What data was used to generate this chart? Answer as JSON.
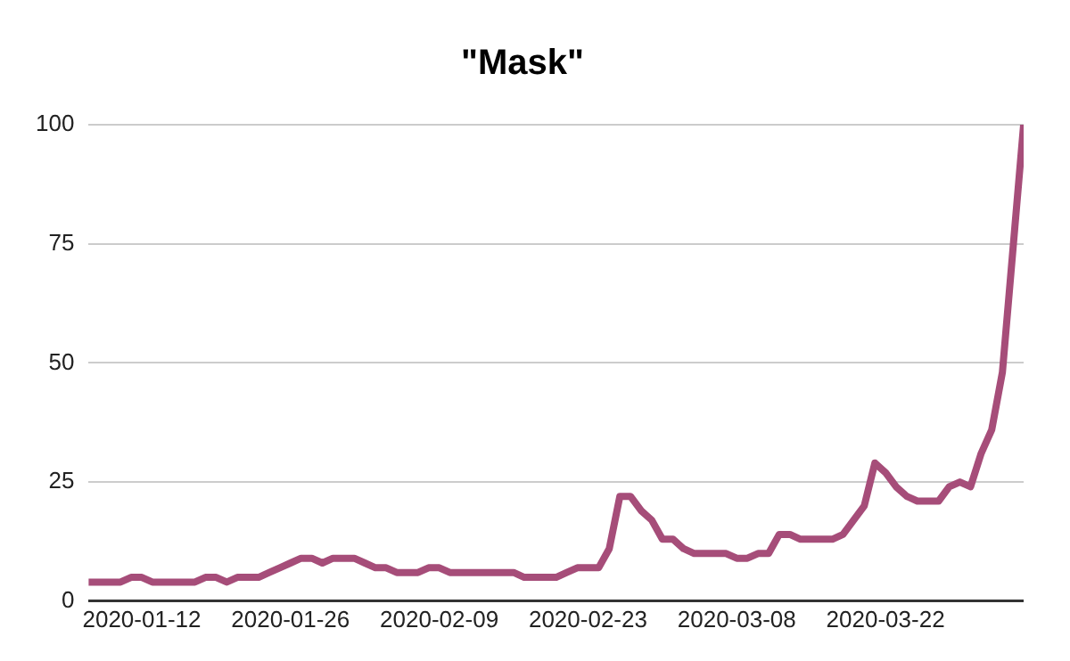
{
  "chart_data": {
    "type": "line",
    "title": "\"Mask\"",
    "x": [
      "2020-01-07",
      "2020-01-08",
      "2020-01-09",
      "2020-01-10",
      "2020-01-11",
      "2020-01-12",
      "2020-01-13",
      "2020-01-14",
      "2020-01-15",
      "2020-01-16",
      "2020-01-17",
      "2020-01-18",
      "2020-01-19",
      "2020-01-20",
      "2020-01-21",
      "2020-01-22",
      "2020-01-23",
      "2020-01-24",
      "2020-01-25",
      "2020-01-26",
      "2020-01-27",
      "2020-01-28",
      "2020-01-29",
      "2020-01-30",
      "2020-01-31",
      "2020-02-01",
      "2020-02-02",
      "2020-02-03",
      "2020-02-04",
      "2020-02-05",
      "2020-02-06",
      "2020-02-07",
      "2020-02-08",
      "2020-02-09",
      "2020-02-10",
      "2020-02-11",
      "2020-02-12",
      "2020-02-13",
      "2020-02-14",
      "2020-02-15",
      "2020-02-16",
      "2020-02-17",
      "2020-02-18",
      "2020-02-19",
      "2020-02-20",
      "2020-02-21",
      "2020-02-22",
      "2020-02-23",
      "2020-02-24",
      "2020-02-25",
      "2020-02-26",
      "2020-02-27",
      "2020-02-28",
      "2020-02-29",
      "2020-03-01",
      "2020-03-02",
      "2020-03-03",
      "2020-03-04",
      "2020-03-05",
      "2020-03-06",
      "2020-03-07",
      "2020-03-08",
      "2020-03-09",
      "2020-03-10",
      "2020-03-11",
      "2020-03-12",
      "2020-03-13",
      "2020-03-14",
      "2020-03-15",
      "2020-03-16",
      "2020-03-17",
      "2020-03-18",
      "2020-03-19",
      "2020-03-20",
      "2020-03-21",
      "2020-03-22",
      "2020-03-23",
      "2020-03-24",
      "2020-03-25",
      "2020-03-26",
      "2020-03-27",
      "2020-03-28",
      "2020-03-29",
      "2020-03-30",
      "2020-03-31",
      "2020-04-01",
      "2020-04-02",
      "2020-04-03",
      "2020-04-04"
    ],
    "series": [
      {
        "color": "#a64d79",
        "values": [
          4,
          4,
          4,
          4,
          5,
          5,
          4,
          4,
          4,
          4,
          4,
          5,
          5,
          4,
          5,
          5,
          5,
          6,
          7,
          8,
          9,
          9,
          8,
          9,
          9,
          9,
          8,
          7,
          7,
          6,
          6,
          6,
          7,
          7,
          6,
          6,
          6,
          6,
          6,
          6,
          6,
          5,
          5,
          5,
          5,
          6,
          7,
          7,
          7,
          11,
          22,
          22,
          19,
          17,
          13,
          13,
          11,
          10,
          10,
          10,
          10,
          9,
          9,
          10,
          10,
          14,
          14,
          13,
          13,
          13,
          13,
          14,
          17,
          20,
          29,
          27,
          24,
          22,
          21,
          21,
          21,
          24,
          25,
          24,
          31,
          36,
          48,
          74,
          100
        ]
      }
    ],
    "xlim": [
      "2020-01-07",
      "2020-04-04"
    ],
    "xticks": [
      "2020-01-12",
      "2020-01-26",
      "2020-02-09",
      "2020-02-23",
      "2020-03-08",
      "2020-03-22"
    ],
    "ylim": [
      0,
      100
    ],
    "yticks": [
      0,
      25,
      50,
      75,
      100
    ],
    "grid": "y",
    "legend": false,
    "marker": "none",
    "line_style": "solid"
  }
}
